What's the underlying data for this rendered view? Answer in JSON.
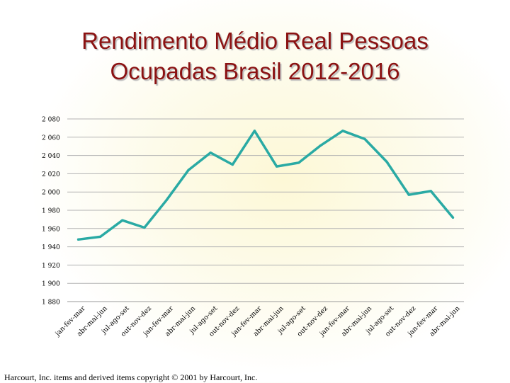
{
  "chart_data": {
    "type": "line",
    "title": [
      "Rendimento Médio Real Pessoas",
      "Ocupadas Brasil 2012-2016"
    ],
    "xlabel": "",
    "ylabel": "",
    "ylim": [
      1880,
      2080
    ],
    "yticks": [
      1880,
      1900,
      1920,
      1940,
      1960,
      1980,
      2000,
      2020,
      2040,
      2060,
      2080
    ],
    "ytick_labels": [
      "1 880",
      "1 900",
      "1 920",
      "1 940",
      "1 960",
      "1 980",
      "2 000",
      "2 020",
      "2 040",
      "2 060",
      "2 080"
    ],
    "grid": true,
    "legend": "none",
    "categories": [
      "jan-fev-mar",
      "abr-mai-jun",
      "jul-ago-set",
      "out-nov-dez",
      "jan-fev-mar",
      "abr-mai-jun",
      "jul-ago-set",
      "out-nov-dez",
      "jan-fev-mar",
      "abr-mai-jun",
      "jul-ago-set",
      "out-nov-dez",
      "jan-fev-mar",
      "abr-mai-jun",
      "jul-ago-set",
      "out-nov-dez",
      "jan-fev-mar",
      "abr-mai-jun"
    ],
    "series": [
      {
        "name": "Rendimento médio real",
        "color": "#2aaaa4",
        "values": [
          1948,
          1951,
          1969,
          1961,
          1991,
          2024,
          2043,
          2030,
          2067,
          2028,
          2032,
          2051,
          2067,
          2058,
          2033,
          1997,
          2001,
          1972
        ]
      }
    ]
  },
  "footer": "Harcourt, Inc. items and derived items copyright © 2001 by Harcourt, Inc."
}
